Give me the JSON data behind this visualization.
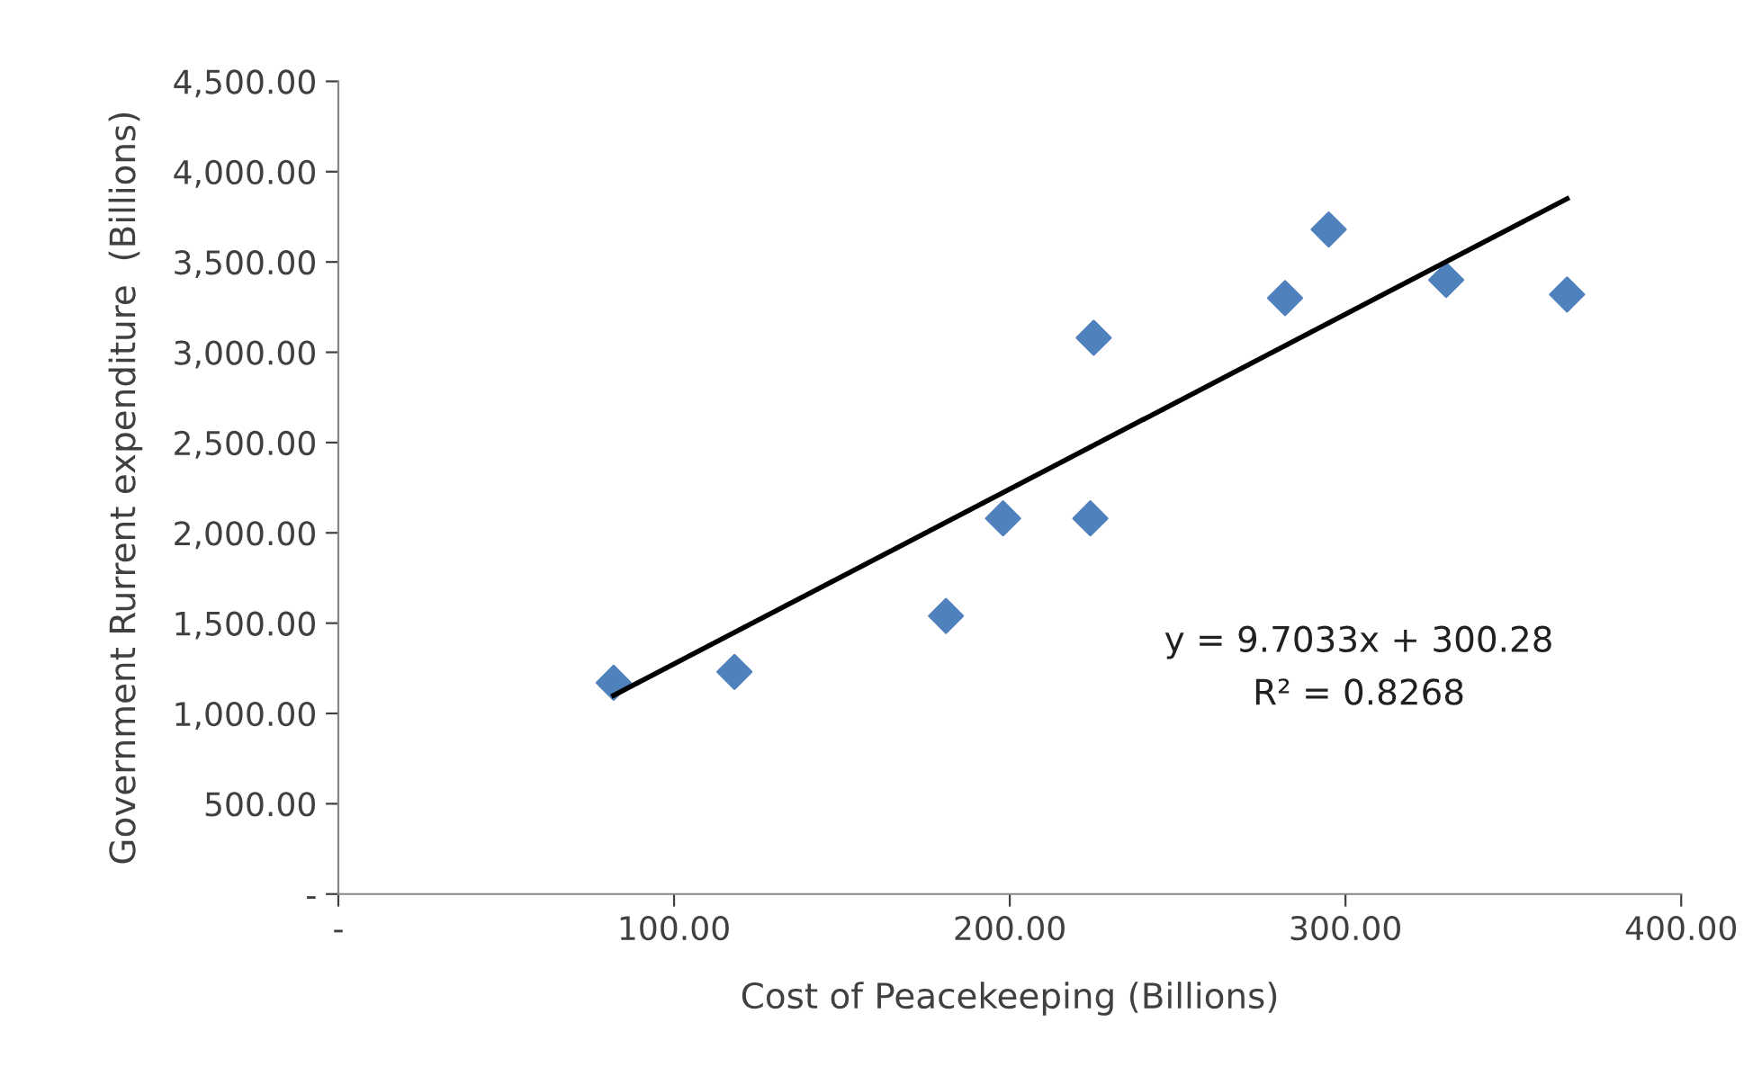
{
  "chart_data": {
    "type": "scatter",
    "xlabel": "Cost of Peacekeeping (Billions)",
    "ylabel": "Government Rurrent expenditure  (Billions)",
    "xlim": [
      0,
      400
    ],
    "ylim": [
      0,
      4500
    ],
    "xticks": [
      {
        "value": 0,
        "label": "-"
      },
      {
        "value": 100,
        "label": "100.00"
      },
      {
        "value": 200,
        "label": "200.00"
      },
      {
        "value": 300,
        "label": "300.00"
      },
      {
        "value": 400,
        "label": "400.00"
      }
    ],
    "yticks": [
      {
        "value": 0,
        "label": "-"
      },
      {
        "value": 500,
        "label": "500.00"
      },
      {
        "value": 1000,
        "label": "1,000.00"
      },
      {
        "value": 1500,
        "label": "1,500.00"
      },
      {
        "value": 2000,
        "label": "2,000.00"
      },
      {
        "value": 2500,
        "label": "2,500.00"
      },
      {
        "value": 3000,
        "label": "3,000.00"
      },
      {
        "value": 3500,
        "label": "3,500.00"
      },
      {
        "value": 4000,
        "label": "4,000.00"
      },
      {
        "value": 4500,
        "label": "4,500.00"
      }
    ],
    "grid": false,
    "legend": false,
    "series": [
      {
        "marker": "diamond",
        "color": "#4f81bd",
        "x": [
          82,
          118,
          181,
          198,
          224,
          225,
          282,
          295,
          330,
          366
        ],
        "values": [
          1170,
          1230,
          1540,
          2080,
          2080,
          3080,
          3300,
          3680,
          3400,
          3320
        ]
      },
      {
        "type": "line",
        "marker": "none",
        "color": "#000000",
        "x": [
          82,
          366
        ],
        "values": [
          1100,
          3850
        ]
      }
    ],
    "annotations": [
      "y = 9.7033x + 300.28",
      "R² = 0.8268"
    ]
  }
}
